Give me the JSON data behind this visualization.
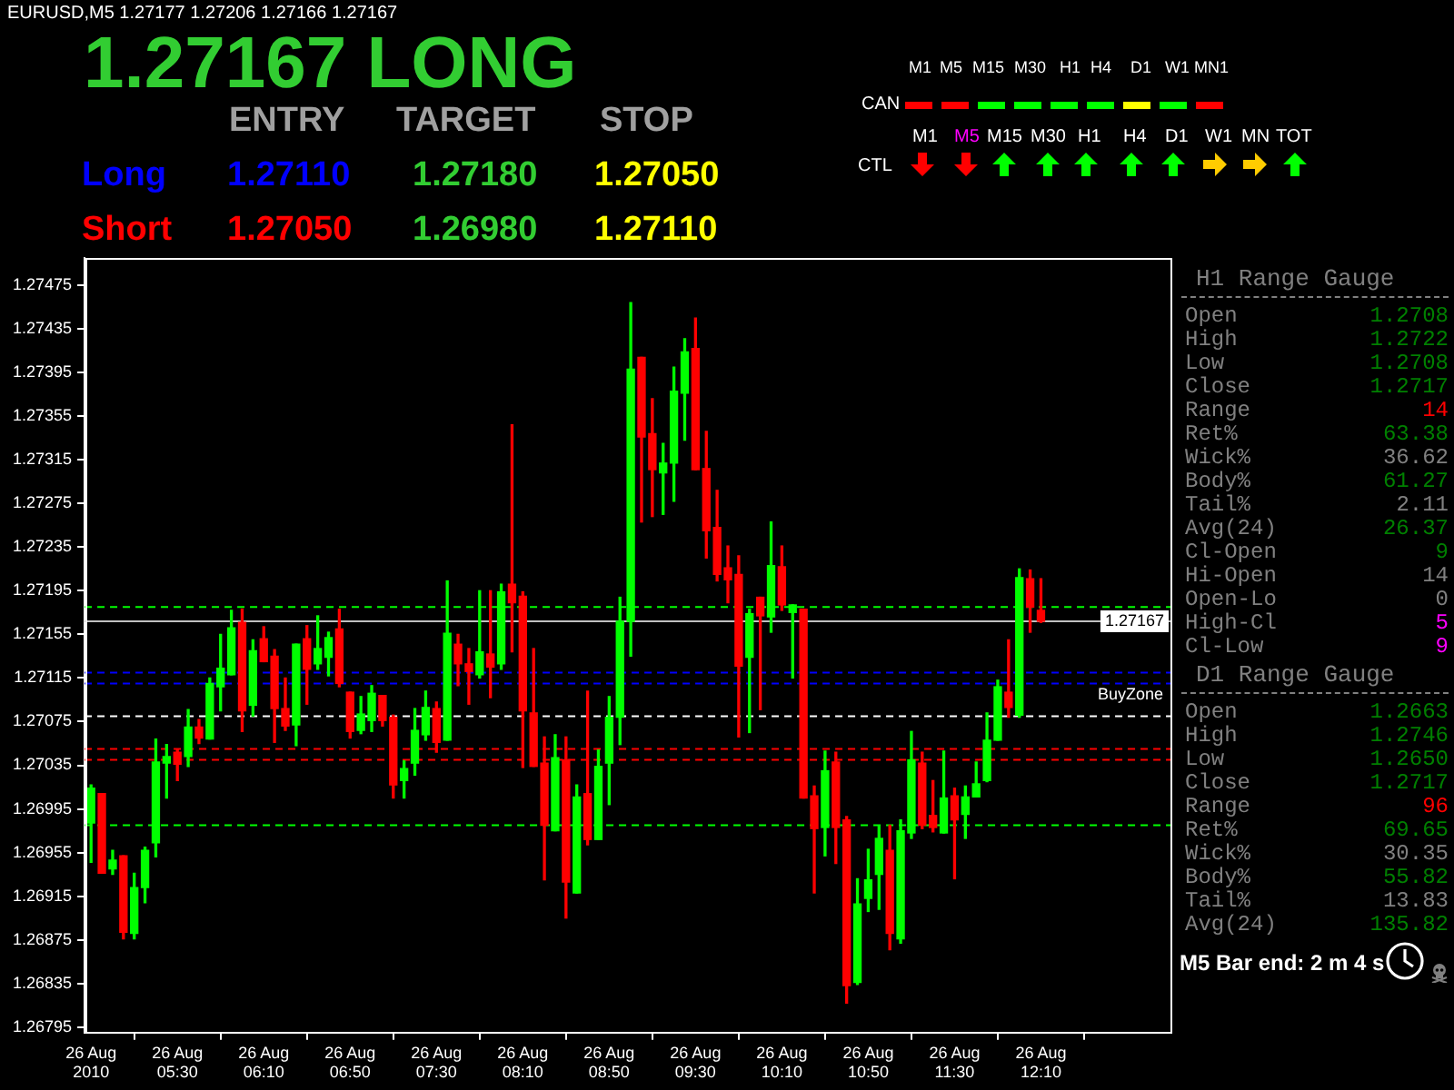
{
  "chart_data": {
    "type": "candlestick",
    "title": "EURUSD,M5 1.27177 1.27206 1.27166 1.27167",
    "categories": [
      "26 Aug 2010",
      null,
      null,
      null,
      null,
      null,
      null,
      null,
      "26 Aug 05:30",
      null,
      null,
      null,
      null,
      null,
      null,
      null,
      "26 Aug 06:10",
      null,
      null,
      null,
      null,
      null,
      null,
      null,
      "26 Aug 06:50",
      null,
      null,
      null,
      null,
      null,
      null,
      null,
      "26 Aug 07:30",
      null,
      null,
      null,
      null,
      null,
      null,
      null,
      "26 Aug 08:10",
      null,
      null,
      null,
      null,
      null,
      null,
      null,
      "26 Aug 08:50",
      null,
      null,
      null,
      null,
      null,
      null,
      null,
      "26 Aug 09:30",
      null,
      null,
      null,
      null,
      null,
      null,
      null,
      "26 Aug 10:10",
      null,
      null,
      null,
      null,
      null,
      null,
      null,
      "26 Aug 10:50",
      null,
      null,
      null,
      null,
      null,
      null,
      null,
      "26 Aug 11:30",
      null,
      null,
      null,
      null,
      null,
      null,
      null,
      "26 Aug 12:10"
    ],
    "ohlc": [
      [
        1.26982,
        1.27017,
        1.26946,
        1.27014
      ],
      [
        1.27009,
        1.27009,
        1.26936,
        1.26936
      ],
      [
        1.2694,
        1.26957,
        1.26935,
        1.26948
      ],
      [
        1.26952,
        1.26952,
        1.26876,
        1.26882
      ],
      [
        1.26881,
        1.26936,
        1.26876,
        1.26923
      ],
      [
        1.26923,
        1.2696,
        1.26909,
        1.26957
      ],
      [
        1.26964,
        1.27059,
        1.26951,
        1.27038
      ],
      [
        1.27037,
        1.27054,
        1.27005,
        1.27043
      ],
      [
        1.27047,
        1.27049,
        1.27021,
        1.27036
      ],
      [
        1.27043,
        1.27086,
        1.27034,
        1.2707
      ],
      [
        1.2707,
        1.27077,
        1.27055,
        1.2706
      ],
      [
        1.27059,
        1.27115,
        1.27059,
        1.2711
      ],
      [
        1.27107,
        1.27155,
        1.27085,
        1.27124
      ],
      [
        1.27118,
        1.27177,
        1.27118,
        1.27161
      ],
      [
        1.27166,
        1.27178,
        1.27066,
        1.27085
      ],
      [
        1.2709,
        1.2715,
        1.2708,
        1.2714
      ],
      [
        1.27151,
        1.27162,
        1.2713,
        1.2713
      ],
      [
        1.27135,
        1.27141,
        1.27056,
        1.27087
      ],
      [
        1.27087,
        1.27115,
        1.27067,
        1.27071
      ],
      [
        1.27072,
        1.27146,
        1.27053,
        1.27146
      ],
      [
        1.27151,
        1.27163,
        1.27091,
        1.27123
      ],
      [
        1.27128,
        1.27172,
        1.27123,
        1.27142
      ],
      [
        1.27134,
        1.27157,
        1.27117,
        1.27152
      ],
      [
        1.2716,
        1.27178,
        1.27107,
        1.2711
      ],
      [
        1.27102,
        1.27102,
        1.2706,
        1.27066
      ],
      [
        1.27067,
        1.27098,
        1.27064,
        1.27082
      ],
      [
        1.27076,
        1.27108,
        1.27066,
        1.27101
      ],
      [
        1.27099,
        1.27099,
        1.27071,
        1.27076
      ],
      [
        1.27079,
        1.27081,
        1.27005,
        1.27017
      ],
      [
        1.27021,
        1.27039,
        1.27005,
        1.27032
      ],
      [
        1.27037,
        1.27087,
        1.27026,
        1.27067
      ],
      [
        1.27063,
        1.27103,
        1.27058,
        1.27088
      ],
      [
        1.27087,
        1.27093,
        1.27047,
        1.27056
      ],
      [
        1.27058,
        1.27204,
        1.27058,
        1.27156
      ],
      [
        1.27146,
        1.27155,
        1.27108,
        1.27128
      ],
      [
        1.27128,
        1.27142,
        1.27091,
        1.27121
      ],
      [
        1.27118,
        1.27195,
        1.27115,
        1.27139
      ],
      [
        1.27137,
        1.27195,
        1.27097,
        1.27125
      ],
      [
        1.27128,
        1.27201,
        1.27123,
        1.27194
      ],
      [
        1.27201,
        1.27347,
        1.27139,
        1.27184
      ],
      [
        1.2719,
        1.27194,
        1.27033,
        1.27085
      ],
      [
        1.27083,
        1.27142,
        1.27034,
        1.27034
      ],
      [
        1.27037,
        1.27061,
        1.2693,
        1.2698
      ],
      [
        1.26975,
        1.27063,
        1.26975,
        1.27042
      ],
      [
        1.2704,
        1.27061,
        1.26895,
        1.26928
      ],
      [
        1.26918,
        1.27017,
        1.26918,
        1.27006
      ],
      [
        1.27009,
        1.27103,
        1.26962,
        1.26967
      ],
      [
        1.26967,
        1.27049,
        1.26967,
        1.27034
      ],
      [
        1.27037,
        1.27098,
        1.26999,
        1.27079
      ],
      [
        1.27079,
        1.27189,
        1.27054,
        1.27167
      ],
      [
        1.27167,
        1.27459,
        1.27135,
        1.27398
      ],
      [
        1.27409,
        1.27409,
        1.27258,
        1.27336
      ],
      [
        1.27339,
        1.27371,
        1.27263,
        1.27306
      ],
      [
        1.27303,
        1.2733,
        1.27265,
        1.27312
      ],
      [
        1.27312,
        1.274,
        1.27277,
        1.27378
      ],
      [
        1.27376,
        1.27426,
        1.27333,
        1.27414
      ],
      [
        1.27417,
        1.27445,
        1.27306,
        1.27306
      ],
      [
        1.27307,
        1.27341,
        1.27225,
        1.2725
      ],
      [
        1.27253,
        1.27287,
        1.27204,
        1.2721
      ],
      [
        1.27216,
        1.27236,
        1.27184,
        1.27205
      ],
      [
        1.2721,
        1.27227,
        1.27061,
        1.27126
      ],
      [
        1.27134,
        1.27178,
        1.27065,
        1.27174
      ],
      [
        1.27189,
        1.27189,
        1.27086,
        1.27172
      ],
      [
        1.27171,
        1.27258,
        1.27157,
        1.27218
      ],
      [
        1.27217,
        1.27236,
        1.27177,
        1.27182
      ],
      [
        1.27175,
        1.27182,
        1.27115,
        1.27182
      ],
      [
        1.27178,
        1.27178,
        1.27005,
        1.27005
      ],
      [
        1.27007,
        1.27016,
        1.26918,
        1.26977
      ],
      [
        1.26978,
        1.27048,
        1.26952,
        1.2703
      ],
      [
        1.27038,
        1.27047,
        1.26945,
        1.26978
      ],
      [
        1.26985,
        1.26988,
        1.26817,
        1.26833
      ],
      [
        1.26836,
        1.26931,
        1.26834,
        1.26908
      ],
      [
        1.26913,
        1.26958,
        1.26901,
        1.2693
      ],
      [
        1.26935,
        1.26979,
        1.26903,
        1.26968
      ],
      [
        1.26957,
        1.2698,
        1.26866,
        1.26881
      ],
      [
        1.26876,
        1.26985,
        1.26872,
        1.26975
      ],
      [
        1.26973,
        1.27066,
        1.26968,
        1.2704
      ],
      [
        1.27037,
        1.27047,
        1.26977,
        1.2698
      ],
      [
        1.26989,
        1.27021,
        1.26974,
        1.26978
      ],
      [
        1.26973,
        1.27048,
        1.26973,
        1.27005
      ],
      [
        1.27007,
        1.27014,
        1.26931,
        1.26985
      ],
      [
        1.2699,
        1.27016,
        1.26968,
        1.27006
      ],
      [
        1.27006,
        1.27038,
        1.27006,
        1.27018
      ],
      [
        1.27021,
        1.27083,
        1.2702,
        1.27058
      ],
      [
        1.27058,
        1.27113,
        1.27058,
        1.27107
      ],
      [
        1.27102,
        1.2715,
        1.27079,
        1.27088
      ],
      [
        1.27081,
        1.27215,
        1.27079,
        1.27207
      ],
      [
        1.27206,
        1.27214,
        1.27157,
        1.2718
      ],
      [
        1.27177,
        1.27206,
        1.27166,
        1.27167
      ]
    ],
    "colors": [
      "#00ff00",
      "#ff0000",
      "#00ff00",
      "#ff0000",
      "#00ff00",
      "#00ff00",
      "#00ff00",
      "#00ff00",
      "#ff0000",
      "#00ff00",
      "#ff0000",
      "#00ff00",
      "#00ff00",
      "#00ff00",
      "#ff0000",
      "#00ff00",
      "#ff0000",
      "#ff0000",
      "#ff0000",
      "#00ff00",
      "#ff0000",
      "#00ff00",
      "#00ff00",
      "#ff0000",
      "#ff0000",
      "#00ff00",
      "#00ff00",
      "#ff0000",
      "#ff0000",
      "#00ff00",
      "#00ff00",
      "#00ff00",
      "#ff0000",
      "#00ff00",
      "#ff0000",
      "#ff0000",
      "#00ff00",
      "#ff0000",
      "#00ff00",
      "#ff0000",
      "#ff0000",
      "#ff0000",
      "#ff0000",
      "#00ff00",
      "#ff0000",
      "#00ff00",
      "#ff0000",
      "#00ff00",
      "#00ff00",
      "#00ff00",
      "#00ff00",
      "#ff0000",
      "#ff0000",
      "#00ff00",
      "#00ff00",
      "#00ff00",
      "#ff0000",
      "#ff0000",
      "#ff0000",
      "#ff0000",
      "#ff0000",
      "#00ff00",
      "#ff0000",
      "#00ff00",
      "#ff0000",
      "#00ff00",
      "#ff0000",
      "#ff0000",
      "#00ff00",
      "#ff0000",
      "#ff0000",
      "#00ff00",
      "#00ff00",
      "#00ff00",
      "#ff0000",
      "#00ff00",
      "#00ff00",
      "#ff0000",
      "#ff0000",
      "#00ff00",
      "#ff0000",
      "#00ff00",
      "#00ff00",
      "#00ff00",
      "#00ff00",
      "#ff0000",
      "#00ff00",
      "#ff0000",
      "#ff0000"
    ],
    "ylim": [
      1.2679,
      1.275
    ],
    "yticks": [
      1.27475,
      1.27435,
      1.27395,
      1.27355,
      1.27315,
      1.27275,
      1.27235,
      1.27195,
      1.27155,
      1.27115,
      1.27075,
      1.27035,
      1.26995,
      1.26955,
      1.26915,
      1.26875,
      1.26835,
      1.26795
    ],
    "ref_lines": [
      {
        "axis": "y",
        "value": 1.27167,
        "label": "1.27167",
        "color": "#c0c0c0",
        "line_style": "solid"
      },
      {
        "axis": "y",
        "value": 1.2718,
        "color": "#00ff00",
        "line_style": "dashed"
      },
      {
        "axis": "y",
        "value": 1.2712,
        "color": "#0000ff",
        "line_style": "dashed"
      },
      {
        "axis": "y",
        "value": 1.2711,
        "label": "BuyZone",
        "color": "#0000ff",
        "line_style": "dashed"
      },
      {
        "axis": "y",
        "value": 1.2708,
        "color": "#ffffff",
        "line_style": "dashed"
      },
      {
        "axis": "y",
        "value": 1.2705,
        "color": "#ff0000",
        "line_style": "dashed"
      },
      {
        "axis": "y",
        "value": 1.2704,
        "color": "#ff0000",
        "line_style": "dashed"
      },
      {
        "axis": "y",
        "value": 1.2698,
        "color": "#00ff00",
        "line_style": "dashed"
      }
    ],
    "annotations": [
      "1.27167 LONG",
      "ENTRY",
      "TARGET",
      "STOP",
      "Long",
      "1.27110",
      "1.27180",
      "1.27050",
      "Short",
      "1.27050",
      "1.26980",
      "1.27110",
      "M1",
      "M5",
      "M15",
      "M30",
      "H1",
      "H4",
      "D1",
      "W1",
      "MN1",
      "CAN",
      "M1",
      "M5",
      "M15",
      "M30",
      "H1",
      "H4",
      "D1",
      "W1",
      "MN",
      "TOT",
      "CTL",
      "H1 Range Gauge",
      "Open",
      "1.2708",
      "High",
      "1.2722",
      "Low",
      "1.2708",
      "Close",
      "1.2717",
      "Range",
      "14",
      "Ret%",
      "63.38",
      "Wick%",
      "36.62",
      "Body%",
      "61.27",
      "Tail%",
      "2.11",
      "Avg(24)",
      "26.37",
      "Cl-Open",
      "9",
      "Hi-Open",
      "14",
      "Open-Lo",
      "0",
      "High-Cl",
      "5",
      "Cl-Low",
      "9",
      "D1 Range Gauge",
      "Open",
      "1.2663",
      "High",
      "1.2746",
      "Low",
      "1.2650",
      "Close",
      "1.2717",
      "Range",
      "96",
      "Ret%",
      "69.65",
      "Wick%",
      "30.35",
      "Body%",
      "55.82",
      "Tail%",
      "13.83",
      "Avg(24)",
      "135.82",
      "M5 Bar end: 2 m 4 s"
    ]
  }
}
